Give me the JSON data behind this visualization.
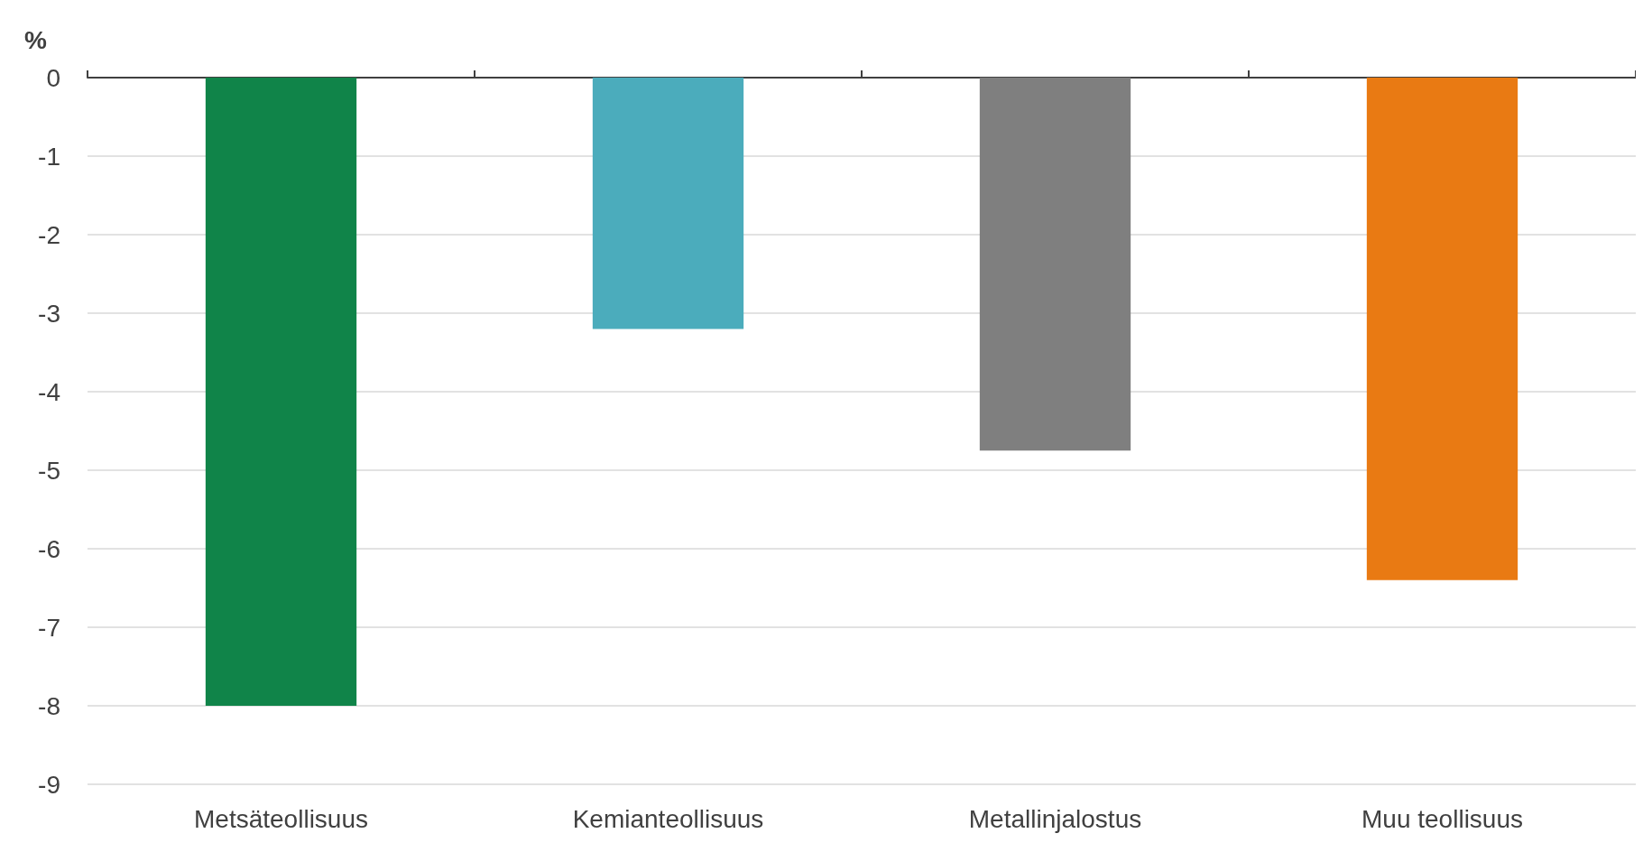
{
  "chart_data": {
    "type": "bar",
    "ylabel": "%",
    "categories": [
      "Metsäteollisuus",
      "Kemianteollisuus",
      "Metallinjalostus",
      "Muu teollisuus"
    ],
    "values": [
      -8,
      -3.2,
      -4.75,
      -6.4
    ],
    "colors": [
      "#108449",
      "#4bacbc",
      "#7f7f7f",
      "#e97a13"
    ],
    "ylim": [
      -9,
      0
    ],
    "yticks": [
      -9,
      -8,
      -7,
      -6,
      -5,
      -4,
      -3,
      -2,
      -1,
      0
    ],
    "grid": "y"
  }
}
